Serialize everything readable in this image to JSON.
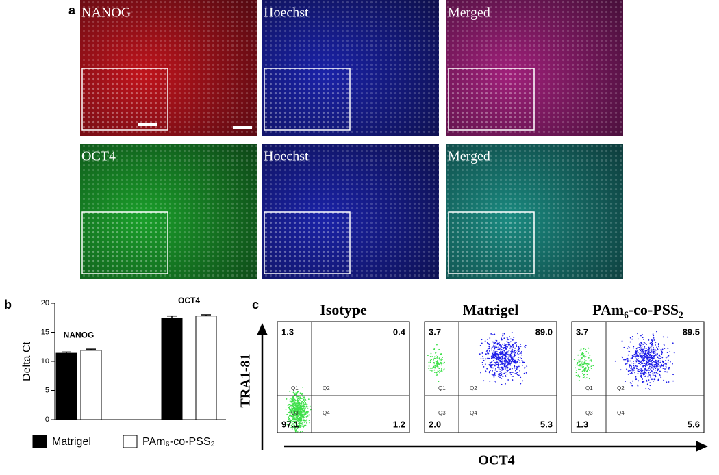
{
  "panel_labels": [
    "a",
    "b",
    "c"
  ],
  "images": {
    "rows": [
      [
        "NANOG",
        "Hoechst",
        "Merged"
      ],
      [
        "OCT4",
        "Hoechst",
        "Merged"
      ]
    ]
  },
  "chart_data": {
    "type": "bar",
    "y_label": "Delta Ct",
    "categories": [
      "NANOG",
      "OCT4"
    ],
    "series": [
      {
        "name": "Matrigel",
        "color": "#000000",
        "values": [
          11.4,
          17.4
        ],
        "errors": [
          0.2,
          0.4
        ]
      },
      {
        "name": "PAm₆-co-PSS₂",
        "color": "#ffffff",
        "values": [
          11.9,
          17.8
        ],
        "errors": [
          0.2,
          0.2
        ]
      }
    ],
    "ylim": [
      0,
      20
    ],
    "yticks": [
      0,
      5,
      10,
      15,
      20
    ]
  },
  "flow": {
    "y_label": "TRA1-81",
    "x_label": "OCT4",
    "gate_labels": [
      "Q1",
      "Q2",
      "Q3",
      "Q4"
    ],
    "plots": [
      {
        "title": "Isotype",
        "quadrants": [
          "1.3",
          "0.4",
          "97.1",
          "1.2"
        ]
      },
      {
        "title": "Matrigel",
        "quadrants": [
          "3.7",
          "89.0",
          "2.0",
          "5.3"
        ]
      },
      {
        "title": "PAm₆-co-PSS₂",
        "quadrants": [
          "3.7",
          "89.5",
          "1.3",
          "5.6"
        ]
      }
    ]
  }
}
